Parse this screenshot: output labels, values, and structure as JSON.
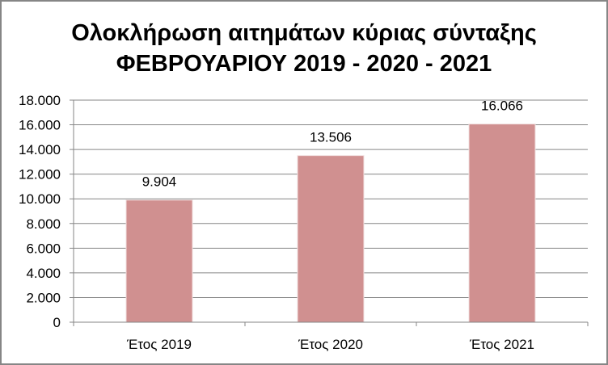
{
  "chart_data": {
    "type": "bar",
    "title": "Ολοκλήρωση αιτημάτων κύριας σύνταξης",
    "subtitle": "ΦΕΒΡΟΥΑΡΙΟΥ 2019 - 2020 - 2021",
    "categories": [
      "Έτος 2019",
      "Έτος 2020",
      "Έτος 2021"
    ],
    "values": [
      9904,
      13506,
      16066
    ],
    "data_labels": [
      "9.904",
      "13.506",
      "16.066"
    ],
    "ylim": [
      0,
      18000
    ],
    "yticks": [
      "0",
      "2.000",
      "4.000",
      "6.000",
      "8.000",
      "10.000",
      "12.000",
      "14.000",
      "16.000",
      "18.000"
    ],
    "grid": true,
    "bar_color": "#d09090",
    "xlabel": "",
    "ylabel": ""
  }
}
